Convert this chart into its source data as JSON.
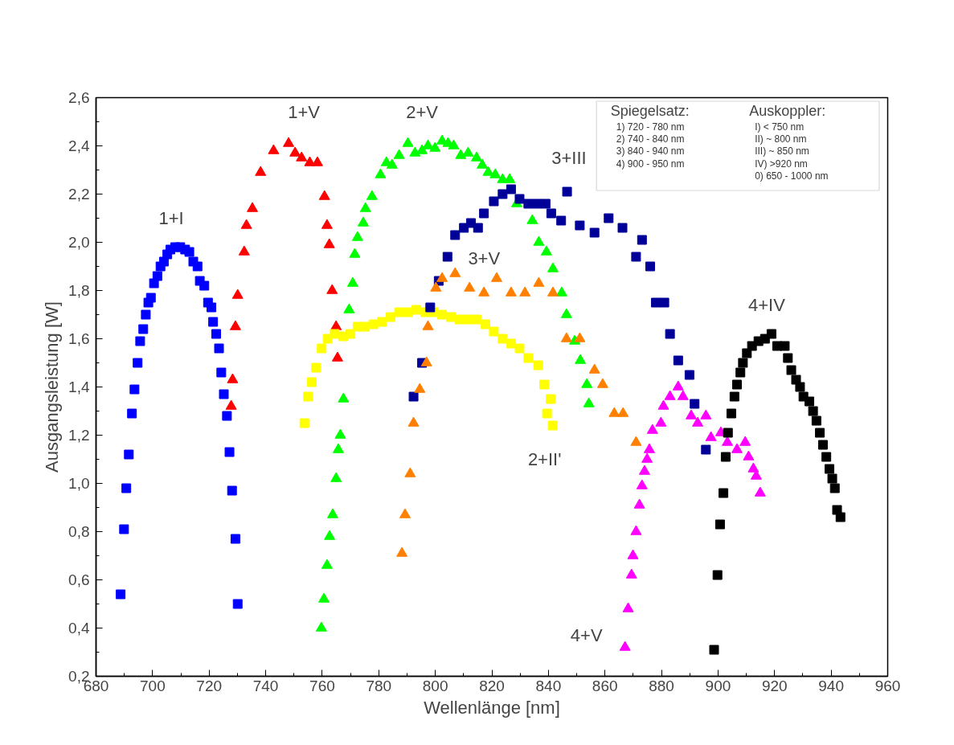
{
  "chart_data": {
    "type": "scatter",
    "xlabel": "Wellenlänge [nm]",
    "ylabel": "Ausgangsleistung [W]",
    "xlim": [
      680,
      960
    ],
    "ylim": [
      0.2,
      2.6
    ],
    "xticks": [
      680,
      700,
      720,
      740,
      760,
      780,
      800,
      820,
      840,
      860,
      880,
      900,
      920,
      940,
      960
    ],
    "yticks": [
      {
        "value": 0.2,
        "label": "0,2"
      },
      {
        "value": 0.4,
        "label": "0,4"
      },
      {
        "value": 0.6,
        "label": "0,6"
      },
      {
        "value": 0.8,
        "label": "0,8"
      },
      {
        "value": 1.0,
        "label": "1,0"
      },
      {
        "value": 1.2,
        "label": "1,2"
      },
      {
        "value": 1.4,
        "label": "1,4"
      },
      {
        "value": 1.6,
        "label": "1,6"
      },
      {
        "value": 1.8,
        "label": "1,8"
      },
      {
        "value": 2.0,
        "label": "2,0"
      },
      {
        "value": 2.2,
        "label": "2,2"
      },
      {
        "value": 2.4,
        "label": "2,4"
      },
      {
        "value": 2.6,
        "label": "2,6"
      }
    ],
    "grid": false,
    "legend": false,
    "series": [
      {
        "name": "1+I",
        "color": "#0000ff",
        "marker": "square",
        "x": [
          688.7,
          689.9,
          690.7,
          691.6,
          692.7,
          693.6,
          694.7,
          695.6,
          696.7,
          697.6,
          698.5,
          699.4,
          700.5,
          701.7,
          702.8,
          704.0,
          705.2,
          706.3,
          708.0,
          709.8,
          711.5,
          713.0,
          714.4,
          715.9,
          716.7,
          718.3,
          719.6,
          720.8,
          721.4,
          722.5,
          723.5,
          724.3,
          725.2,
          726.3,
          727.2,
          728.1,
          729.3,
          730.1
        ],
        "values": [
          0.54,
          0.81,
          0.98,
          1.12,
          1.29,
          1.39,
          1.5,
          1.59,
          1.64,
          1.7,
          1.75,
          1.77,
          1.83,
          1.86,
          1.9,
          1.92,
          1.95,
          1.97,
          1.98,
          1.98,
          1.97,
          1.96,
          1.92,
          1.9,
          1.84,
          1.82,
          1.75,
          1.73,
          1.67,
          1.62,
          1.56,
          1.46,
          1.37,
          1.28,
          1.13,
          0.97,
          0.77,
          0.5
        ]
      },
      {
        "name": "1+V",
        "color": "#ff0000",
        "marker": "triangle",
        "x": [
          727.8,
          728.3,
          729.3,
          730.1,
          732.4,
          733.2,
          735.3,
          738.2,
          742.8,
          748.1,
          750.4,
          752.7,
          755.6,
          758.3,
          760.8,
          761.7,
          762.5,
          763.5,
          764.9,
          765.4
        ],
        "values": [
          1.32,
          1.43,
          1.65,
          1.78,
          1.96,
          2.07,
          2.14,
          2.29,
          2.38,
          2.41,
          2.37,
          2.35,
          2.33,
          2.33,
          2.19,
          2.07,
          1.99,
          1.8,
          1.65,
          1.52
        ]
      },
      {
        "name": "2+V",
        "color": "#00ff00",
        "marker": "triangle",
        "x": [
          759.7,
          760.6,
          761.7,
          762.6,
          763.7,
          764.9,
          765.7,
          766.4,
          767.5,
          769.5,
          770.8,
          771.5,
          772.5,
          774.5,
          775.3,
          777.6,
          780.6,
          782.7,
          784.7,
          787.2,
          790.3,
          792.8,
          795.3,
          797.4,
          799.9,
          802.4,
          804.5,
          806.5,
          809.0,
          811.6,
          814.6,
          816.6,
          818.7,
          821.2,
          823.8,
          826.3,
          828.8,
          834.3,
          836.6,
          839.3,
          841.6,
          844.7,
          846.4,
          849.3,
          851.3,
          853.6,
          854.3
        ],
        "values": [
          0.4,
          0.52,
          0.66,
          0.78,
          0.87,
          1.02,
          1.14,
          1.2,
          1.35,
          1.72,
          1.83,
          1.95,
          2.02,
          2.08,
          2.14,
          2.19,
          2.28,
          2.33,
          2.32,
          2.36,
          2.41,
          2.37,
          2.38,
          2.4,
          2.39,
          2.42,
          2.41,
          2.4,
          2.36,
          2.37,
          2.35,
          2.32,
          2.29,
          2.28,
          2.26,
          2.26,
          2.16,
          2.09,
          2.0,
          1.96,
          1.89,
          1.79,
          1.7,
          1.59,
          1.51,
          1.41,
          1.33
        ]
      },
      {
        "name": "2+II'",
        "color": "#ffff00",
        "marker": "square",
        "x": [
          753.7,
          755.0,
          756.3,
          757.8,
          759.8,
          761.9,
          764.4,
          767.4,
          770.0,
          772.5,
          775.1,
          778.1,
          781.1,
          784.2,
          787.2,
          790.3,
          793.3,
          796.4,
          799.4,
          802.4,
          805.5,
          808.5,
          811.6,
          814.6,
          817.7,
          820.7,
          823.8,
          826.8,
          829.8,
          832.9,
          836.4,
          838.5,
          840.8,
          839.5,
          841.5
        ],
        "values": [
          1.25,
          1.36,
          1.42,
          1.48,
          1.56,
          1.6,
          1.62,
          1.61,
          1.62,
          1.65,
          1.65,
          1.66,
          1.67,
          1.69,
          1.71,
          1.71,
          1.72,
          1.71,
          1.71,
          1.7,
          1.69,
          1.68,
          1.68,
          1.68,
          1.66,
          1.63,
          1.6,
          1.58,
          1.56,
          1.52,
          1.49,
          1.41,
          1.35,
          1.29,
          1.24
        ]
      },
      {
        "name": "3+III",
        "color": "#000099",
        "marker": "square",
        "x": [
          792.3,
          795.3,
          798.2,
          801.2,
          804.3,
          807.0,
          810.1,
          812.6,
          815.1,
          817.2,
          820.7,
          823.8,
          826.8,
          829.8,
          832.9,
          836.0,
          839.0,
          841.0,
          844.5,
          846.6,
          851.1,
          856.3,
          861.3,
          866.2,
          871.0,
          873.1,
          876.0,
          878.0,
          881.0,
          883.0,
          885.9,
          889.9,
          891.7,
          895.7
        ],
        "values": [
          1.36,
          1.5,
          1.73,
          1.84,
          1.94,
          2.03,
          2.06,
          2.08,
          2.06,
          2.12,
          2.17,
          2.2,
          2.22,
          2.18,
          2.16,
          2.16,
          2.16,
          2.12,
          2.09,
          2.21,
          2.07,
          2.04,
          2.1,
          2.06,
          1.94,
          2.01,
          1.9,
          1.75,
          1.75,
          1.62,
          1.51,
          1.45,
          1.33,
          1.14
        ]
      },
      {
        "name": "3+V",
        "color": "#ff8000",
        "marker": "triangle",
        "x": [
          788.2,
          789.3,
          791.1,
          792.3,
          794.5,
          796.9,
          797.4,
          800.2,
          802.4,
          807.0,
          812.1,
          817.2,
          821.7,
          826.8,
          831.7,
          836.6,
          841.6,
          846.4,
          851.1,
          856.3,
          859.2,
          863.3,
          866.4,
          871.0
        ],
        "values": [
          0.71,
          0.87,
          1.04,
          1.25,
          1.39,
          1.5,
          1.65,
          1.81,
          1.85,
          1.87,
          1.81,
          1.79,
          1.85,
          1.79,
          1.79,
          1.83,
          1.79,
          1.6,
          1.6,
          1.47,
          1.41,
          1.29,
          1.29,
          1.17
        ]
      },
      {
        "name": "4+V",
        "color": "#ff00ff",
        "marker": "triangle",
        "x": [
          867.1,
          868.2,
          869.4,
          869.9,
          871.0,
          872.2,
          873.1,
          874.0,
          874.9,
          875.7,
          876.8,
          879.8,
          880.7,
          883.0,
          885.9,
          887.6,
          890.5,
          892.8,
          895.7,
          897.5,
          901.0,
          903.3,
          906.7,
          909.6,
          910.8,
          912.5,
          913.5,
          914.9
        ],
        "values": [
          0.32,
          0.48,
          0.62,
          0.7,
          0.8,
          0.91,
          0.99,
          1.05,
          1.1,
          1.14,
          1.22,
          1.25,
          1.32,
          1.36,
          1.4,
          1.36,
          1.28,
          1.25,
          1.28,
          1.19,
          1.21,
          1.17,
          1.14,
          1.17,
          1.11,
          1.06,
          1.03,
          0.96
        ]
      },
      {
        "name": "4+IV",
        "color": "#000000",
        "marker": "square",
        "x": [
          898.6,
          899.8,
          900.7,
          901.9,
          902.7,
          903.5,
          904.7,
          905.8,
          906.7,
          907.9,
          908.8,
          910.2,
          912.0,
          914.3,
          916.6,
          918.9,
          920.9,
          923.6,
          924.7,
          925.9,
          927.6,
          929.0,
          930.2,
          932.3,
          933.6,
          934.8,
          936.0,
          937.1,
          938.3,
          939.4,
          940.4,
          941.3,
          942.1,
          943.3
        ],
        "values": [
          0.31,
          0.62,
          0.83,
          0.96,
          1.11,
          1.21,
          1.29,
          1.36,
          1.41,
          1.46,
          1.5,
          1.54,
          1.57,
          1.59,
          1.6,
          1.62,
          1.57,
          1.57,
          1.52,
          1.47,
          1.43,
          1.4,
          1.36,
          1.34,
          1.3,
          1.26,
          1.21,
          1.16,
          1.11,
          1.06,
          1.02,
          0.98,
          0.89,
          0.86
        ]
      }
    ],
    "annotations": [
      "Spiegelsatz:",
      "1) 720 - 780 nm",
      "2) 740 - 840 nm",
      "3) 840 - 940 nm",
      "4) 900 - 950 nm",
      "Auskoppler:",
      "I)   < 750 nm",
      "II)  ~ 800 nm",
      "III) ~ 850 nm",
      "IV) >920 nm",
      "0)  650 - 1000 nm"
    ]
  }
}
